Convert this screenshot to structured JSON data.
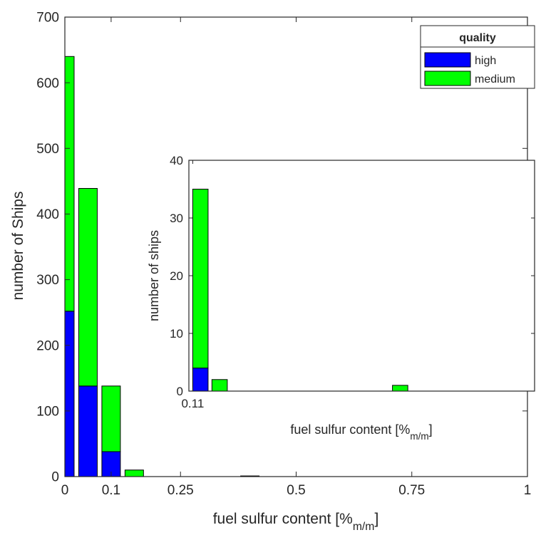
{
  "chart_data": [
    {
      "type": "bar",
      "stacked": true,
      "xlabel": "fuel sulfur content [%",
      "xlabel_sub": "m/m",
      "xlabel_close": "]",
      "ylabel": "number of Ships",
      "xlim": [
        0,
        1
      ],
      "ylim": [
        0,
        700
      ],
      "xticks": [
        0,
        0.1,
        0.25,
        0.5,
        0.75,
        1
      ],
      "xtick_labels": [
        "0",
        "0.1",
        "0.25",
        "0.5",
        "0.75",
        "1"
      ],
      "yticks": [
        0,
        100,
        200,
        300,
        400,
        500,
        600,
        700
      ],
      "ytick_labels": [
        "0",
        "100",
        "200",
        "300",
        "400",
        "500",
        "600",
        "700"
      ],
      "grid": false,
      "legend": {
        "title": "quality",
        "placement": "top-right",
        "entries": [
          {
            "label": "high",
            "color": "#0000ff"
          },
          {
            "label": "medium",
            "color": "#00ff00"
          }
        ]
      },
      "bins": [
        {
          "x0": 0.0,
          "x1": 0.02,
          "high": 252,
          "medium": 388
        },
        {
          "x0": 0.03,
          "x1": 0.07,
          "high": 138,
          "medium": 301
        },
        {
          "x0": 0.08,
          "x1": 0.12,
          "high": 38,
          "medium": 100
        },
        {
          "x0": 0.13,
          "x1": 0.17,
          "high": 0,
          "medium": 10
        },
        {
          "x0": 0.38,
          "x1": 0.42,
          "high": 0,
          "medium": 1
        }
      ]
    },
    {
      "type": "bar",
      "stacked": true,
      "inset": true,
      "xlabel": "fuel sulfur content [%",
      "xlabel_sub": "m/m",
      "xlabel_close": "]",
      "ylabel": "number of ships",
      "xlim": [
        0.1,
        1
      ],
      "ylim": [
        0,
        40
      ],
      "xticks": [
        0.11
      ],
      "xtick_labels": [
        "0.11"
      ],
      "yticks": [
        0,
        10,
        20,
        30,
        40
      ],
      "ytick_labels": [
        "0",
        "10",
        "20",
        "30",
        "40"
      ],
      "bins": [
        {
          "x0": 0.11,
          "x1": 0.15,
          "high": 4,
          "medium": 31
        },
        {
          "x0": 0.16,
          "x1": 0.2,
          "high": 0,
          "medium": 2
        },
        {
          "x0": 0.63,
          "x1": 0.67,
          "high": 0,
          "medium": 1
        }
      ]
    }
  ],
  "colors": {
    "high": "#0000ff",
    "medium": "#00ff00",
    "axis": "#262626",
    "bar_edge": "#000000"
  }
}
